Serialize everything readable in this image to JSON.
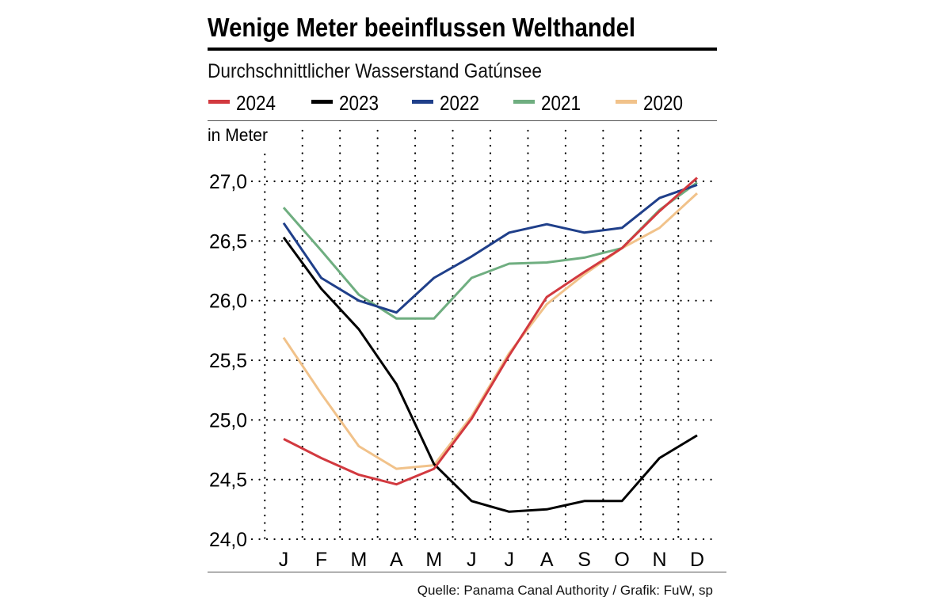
{
  "chart_data": {
    "type": "line",
    "title": "Wenige Meter beeinflussen Welthandel",
    "subtitle": "Durchschnittlicher Wasserstand Gatúnsee",
    "ylabel": "in Meter",
    "xlabel": "",
    "categories": [
      "J",
      "F",
      "M",
      "A",
      "M",
      "J",
      "J",
      "A",
      "S",
      "O",
      "N",
      "D"
    ],
    "yticks": [
      "24,0",
      "24,5",
      "25,0",
      "25,5",
      "26,0",
      "26,5",
      "27,0"
    ],
    "ylim": [
      24.0,
      27.0
    ],
    "grid": true,
    "legend_position": "top",
    "series": [
      {
        "name": "2024",
        "color": "#d2393f",
        "values": [
          24.84,
          24.68,
          24.54,
          24.46,
          24.59,
          25.01,
          25.54,
          26.03,
          26.24,
          26.44,
          26.75,
          27.03
        ]
      },
      {
        "name": "2023",
        "color": "#000000",
        "values": [
          26.53,
          26.1,
          25.76,
          25.3,
          24.63,
          24.32,
          24.23,
          24.25,
          24.32,
          24.32,
          24.68,
          24.87
        ]
      },
      {
        "name": "2022",
        "color": "#1f3f8a",
        "values": [
          26.65,
          26.19,
          26.0,
          25.9,
          26.19,
          26.37,
          26.57,
          26.64,
          26.57,
          26.61,
          26.86,
          26.97
        ]
      },
      {
        "name": "2021",
        "color": "#6fae80",
        "values": [
          26.78,
          26.42,
          26.05,
          25.85,
          25.85,
          26.19,
          26.31,
          26.32,
          26.36,
          26.44,
          26.76,
          26.99
        ]
      },
      {
        "name": "2020",
        "color": "#f1c28a",
        "values": [
          25.69,
          25.22,
          24.78,
          24.59,
          24.62,
          25.03,
          25.56,
          25.97,
          26.22,
          26.44,
          26.61,
          26.9
        ]
      }
    ],
    "source": "Quelle: Panama Canal Authority / Grafik: FuW, sp"
  }
}
